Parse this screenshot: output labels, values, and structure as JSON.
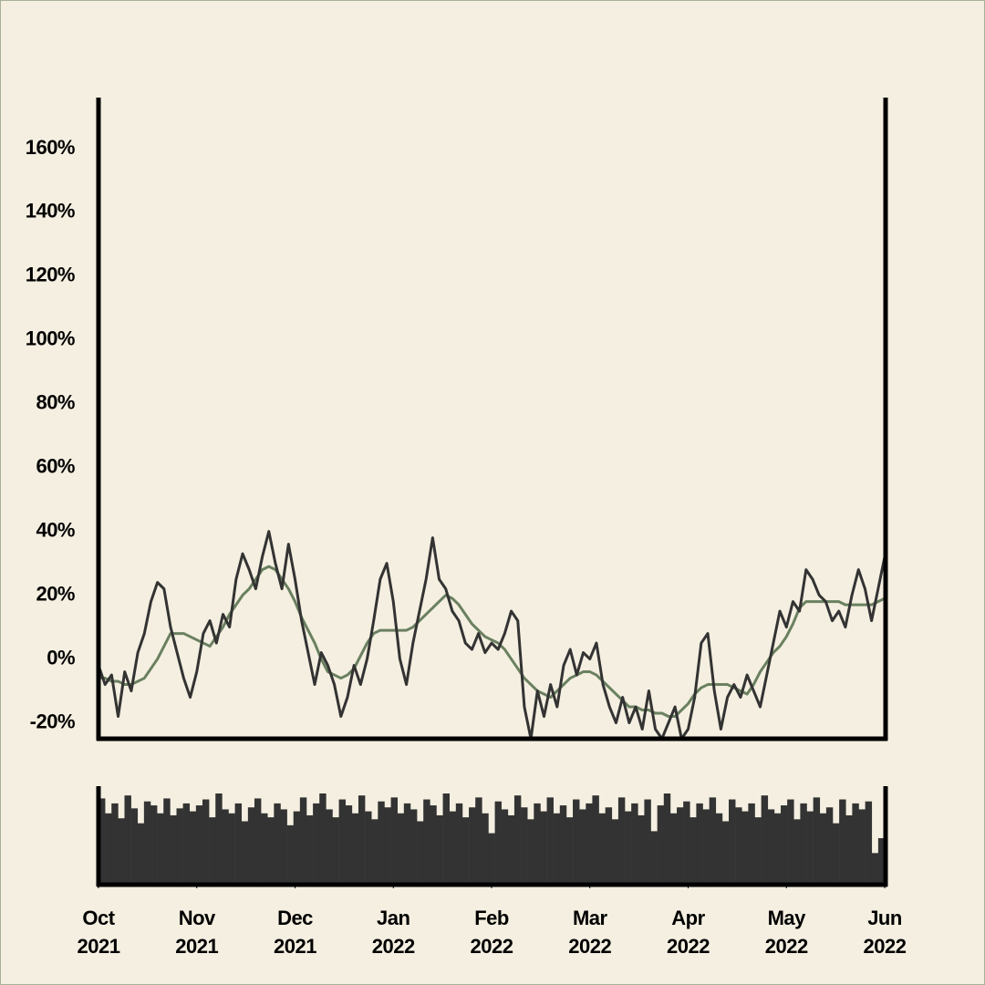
{
  "chart_data": [
    {
      "type": "line",
      "categories": [
        "Oct 2021",
        null,
        null,
        null,
        null,
        null,
        null,
        null,
        null,
        null,
        null,
        null,
        null,
        null,
        null,
        "Nov 2021",
        null,
        null,
        null,
        null,
        null,
        null,
        null,
        null,
        null,
        null,
        null,
        null,
        null,
        null,
        "Dec 2021",
        null,
        null,
        null,
        null,
        null,
        null,
        null,
        null,
        null,
        null,
        null,
        null,
        null,
        null,
        "Jan 2022",
        null,
        null,
        null,
        null,
        null,
        null,
        null,
        null,
        null,
        null,
        null,
        null,
        null,
        null,
        "Feb 2022",
        null,
        null,
        null,
        null,
        null,
        null,
        null,
        null,
        null,
        null,
        null,
        null,
        null,
        null,
        "Mar 2022",
        null,
        null,
        null,
        null,
        null,
        null,
        null,
        null,
        null,
        null,
        null,
        null,
        null,
        null,
        "Apr 2022",
        null,
        null,
        null,
        null,
        null,
        null,
        null,
        null,
        null,
        null,
        null,
        null,
        null,
        null,
        "May 2022",
        null,
        null,
        null,
        null,
        null,
        null,
        null,
        null,
        null,
        null,
        null,
        null,
        null,
        null,
        "Jun 2022"
      ],
      "series": [
        {
          "color": "#333333",
          "values": [
            -2,
            -8,
            -5,
            -18,
            -4,
            -10,
            2,
            8,
            18,
            24,
            22,
            10,
            2,
            -6,
            -12,
            -4,
            8,
            12,
            5,
            14,
            10,
            25,
            33,
            28,
            22,
            32,
            40,
            30,
            22,
            36,
            25,
            12,
            2,
            -8,
            2,
            -2,
            -8,
            -18,
            -12,
            -2,
            -8,
            0,
            12,
            25,
            30,
            18,
            0,
            -8,
            5,
            15,
            25,
            38,
            25,
            22,
            15,
            12,
            5,
            3,
            8,
            2,
            5,
            3,
            8,
            15,
            12,
            -15,
            -25,
            -10,
            -18,
            -8,
            -15,
            -2,
            3,
            -5,
            2,
            0,
            5,
            -8,
            -15,
            -20,
            -12,
            -20,
            -15,
            -22,
            -10,
            -22,
            -25,
            -20,
            -15,
            -25,
            -22,
            -12,
            5,
            8,
            -10,
            -22,
            -12,
            -8,
            -12,
            -5,
            -10,
            -15,
            -5,
            5,
            15,
            10,
            18,
            15,
            28,
            25,
            20,
            18,
            12,
            15,
            10,
            20,
            28,
            22,
            12,
            22,
            32
          ]
        },
        {
          "color": "#6a8060",
          "values": [
            -6,
            -6,
            -7,
            -7,
            -8,
            -8,
            -7,
            -6,
            -3,
            0,
            4,
            8,
            8,
            8,
            7,
            6,
            5,
            4,
            7,
            10,
            14,
            17,
            20,
            22,
            25,
            28,
            29,
            28,
            25,
            22,
            18,
            13,
            9,
            5,
            0,
            -4,
            -5,
            -6,
            -5,
            -3,
            1,
            5,
            8,
            9,
            9,
            9,
            9,
            9,
            10,
            12,
            14,
            16,
            18,
            20,
            19,
            17,
            14,
            11,
            9,
            7,
            6,
            5,
            3,
            0,
            -3,
            -6,
            -8,
            -10,
            -11,
            -12,
            -10,
            -8,
            -6,
            -5,
            -4,
            -4,
            -5,
            -7,
            -9,
            -11,
            -13,
            -15,
            -15,
            -16,
            -16,
            -17,
            -17,
            -18,
            -18,
            -16,
            -14,
            -11,
            -9,
            -8,
            -8,
            -8,
            -8,
            -9,
            -10,
            -11,
            -8,
            -4,
            -1,
            2,
            4,
            7,
            11,
            16,
            18,
            18,
            18,
            18,
            18,
            18,
            17,
            17,
            17,
            17,
            17,
            18,
            19
          ]
        }
      ],
      "ylim": [
        -25,
        176
      ],
      "yticks": [
        {
          "value": -20,
          "label": "-20%"
        },
        {
          "value": 0,
          "label": "0%"
        },
        {
          "value": 20,
          "label": "20%"
        },
        {
          "value": 40,
          "label": "40%"
        },
        {
          "value": 60,
          "label": "60%"
        },
        {
          "value": 80,
          "label": "80%"
        },
        {
          "value": 100,
          "label": "100%"
        },
        {
          "value": 120,
          "label": "120%"
        },
        {
          "value": 140,
          "label": "140%"
        },
        {
          "value": 160,
          "label": "160%"
        }
      ]
    },
    {
      "type": "bar",
      "color": "#333333",
      "values": [
        85,
        70,
        80,
        65,
        88,
        75,
        60,
        82,
        78,
        70,
        85,
        68,
        75,
        80,
        72,
        78,
        84,
        66,
        90,
        74,
        70,
        80,
        62,
        76,
        85,
        70,
        66,
        80,
        74,
        58,
        72,
        86,
        68,
        80,
        90,
        74,
        66,
        84,
        78,
        70,
        88,
        72,
        64,
        82,
        76,
        86,
        70,
        80,
        74,
        62,
        84,
        78,
        68,
        90,
        72,
        80,
        66,
        76,
        86,
        70,
        50,
        82,
        74,
        68,
        88,
        76,
        64,
        80,
        72,
        86,
        70,
        78,
        66,
        84,
        74,
        80,
        88,
        70,
        76,
        64,
        86,
        72,
        80,
        68,
        84,
        52,
        78,
        90,
        70,
        76,
        82,
        66,
        80,
        74,
        86,
        70,
        62,
        84,
        76,
        72,
        80,
        66,
        88,
        74,
        70,
        78,
        84,
        64,
        80,
        72,
        86,
        70,
        76,
        60,
        84,
        68,
        80,
        74,
        82,
        30,
        45
      ]
    }
  ]
}
